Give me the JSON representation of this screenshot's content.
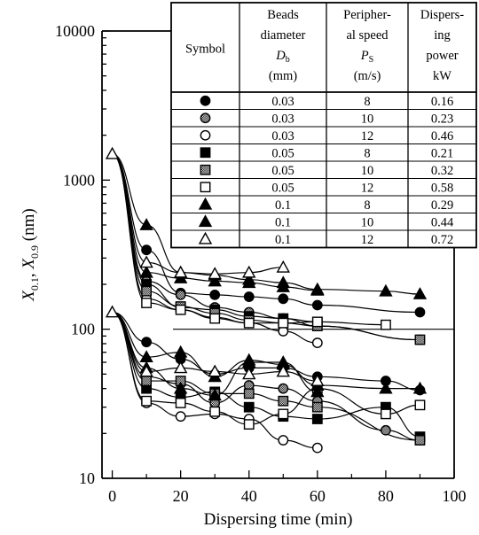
{
  "chart_data": {
    "type": "line",
    "xlabel": "Dispersing time (min)",
    "ylabel_parts": {
      "x": "X",
      "sub1": "0.1",
      "sep": ", ",
      "x2": "X",
      "sub2": "0.9",
      "unit": " (nm)"
    },
    "xlim": [
      -3,
      100
    ],
    "ylim": [
      10,
      10000
    ],
    "y_scale": "log",
    "x_ticks": [
      0,
      20,
      40,
      60,
      80,
      100
    ],
    "y_ticks": [
      10,
      100,
      1000,
      10000
    ],
    "y_tick_labels": [
      "10",
      "100",
      "1000",
      "10000"
    ],
    "grid": "horizontal lines at 100 and 1000 (within table area)",
    "table": {
      "headers": [
        [
          "Symbol"
        ],
        [
          "Beads",
          "diameter",
          "D_b",
          "(mm)"
        ],
        [
          "Peripher-",
          "al speed",
          "P_S",
          "(m/s)"
        ],
        [
          "Dispers-",
          "ing",
          "power",
          "kW"
        ]
      ],
      "rows": [
        {
          "symbol": "filled-circle",
          "diameter": "0.03",
          "speed": "8",
          "power": "0.16"
        },
        {
          "symbol": "shaded-circle",
          "diameter": "0.03",
          "speed": "10",
          "power": "0.23"
        },
        {
          "symbol": "open-circle",
          "diameter": "0.03",
          "speed": "12",
          "power": "0.46"
        },
        {
          "symbol": "filled-square",
          "diameter": "0.05",
          "speed": "8",
          "power": "0.21"
        },
        {
          "symbol": "shaded-square",
          "diameter": "0.05",
          "speed": "10",
          "power": "0.32"
        },
        {
          "symbol": "open-square",
          "diameter": "0.05",
          "speed": "12",
          "power": "0.58"
        },
        {
          "symbol": "filled-triangle",
          "diameter": "0.1",
          "speed": "8",
          "power": "0.29"
        },
        {
          "symbol": "filled-triangle",
          "diameter": "0.1",
          "speed": "10",
          "power": "0.44"
        },
        {
          "symbol": "open-triangle",
          "diameter": "0.1",
          "speed": "12",
          "power": "0.72"
        }
      ]
    },
    "series": [
      {
        "name": "0.03 mm / 8 m/s X0.9",
        "marker": "filled-circle",
        "x": [
          0,
          10,
          20,
          30,
          40,
          50,
          60,
          90
        ],
        "y": [
          1500,
          340,
          175,
          170,
          165,
          160,
          145,
          130
        ]
      },
      {
        "name": "0.03 mm / 8 m/s X0.1",
        "marker": "filled-circle",
        "x": [
          0,
          10,
          20,
          30,
          40,
          50,
          60,
          80,
          90
        ],
        "y": [
          130,
          82,
          63,
          50,
          55,
          55,
          48,
          45,
          39
        ]
      },
      {
        "name": "0.03 mm / 10 m/s X0.9",
        "marker": "shaded-circle",
        "x": [
          0,
          10,
          20,
          30,
          40,
          50,
          60,
          90
        ],
        "y": [
          1500,
          210,
          170,
          140,
          130,
          118,
          105,
          85
        ]
      },
      {
        "name": "0.03 mm / 10 m/s X0.1",
        "marker": "shaded-circle",
        "x": [
          0,
          10,
          20,
          30,
          40,
          50,
          60,
          80,
          90
        ],
        "y": [
          130,
          48,
          43,
          32,
          42,
          40,
          33,
          21,
          18
        ]
      },
      {
        "name": "0.03 mm / 12 m/s X0.9",
        "marker": "open-circle",
        "x": [
          0,
          10,
          20,
          30,
          40,
          50,
          60
        ],
        "y": [
          1500,
          160,
          135,
          120,
          110,
          97,
          81
        ]
      },
      {
        "name": "0.03 mm / 12 m/s X0.1",
        "marker": "open-circle",
        "x": [
          0,
          10,
          20,
          30,
          40,
          50,
          60
        ],
        "y": [
          130,
          32,
          26,
          27,
          25,
          18,
          16
        ]
      },
      {
        "name": "0.05 mm / 8 m/s X0.9",
        "marker": "filled-square",
        "x": [
          0,
          10,
          20,
          30,
          40,
          50,
          60
        ],
        "y": [
          1500,
          200,
          140,
          135,
          122,
          118,
          112
        ]
      },
      {
        "name": "0.05 mm / 8 m/s X0.1",
        "marker": "filled-square",
        "x": [
          0,
          10,
          20,
          30,
          40,
          50,
          60,
          80,
          90
        ],
        "y": [
          130,
          40,
          35,
          38,
          30,
          26,
          25,
          30,
          19
        ]
      },
      {
        "name": "0.05 mm / 10 m/s X0.9",
        "marker": "shaded-square",
        "x": [
          0,
          10,
          20,
          30,
          40,
          50,
          60,
          90
        ],
        "y": [
          1500,
          180,
          142,
          128,
          115,
          110,
          105,
          85
        ]
      },
      {
        "name": "0.05 mm / 10 m/s X0.1",
        "marker": "shaded-square",
        "x": [
          0,
          10,
          20,
          30,
          40,
          50,
          60,
          90
        ],
        "y": [
          130,
          45,
          45,
          37,
          37,
          33,
          30,
          18
        ]
      },
      {
        "name": "0.05 mm / 12 m/s X0.9",
        "marker": "open-square",
        "x": [
          0,
          10,
          20,
          30,
          40,
          50,
          60,
          80
        ],
        "y": [
          1500,
          150,
          135,
          118,
          110,
          110,
          112,
          107
        ]
      },
      {
        "name": "0.05 mm / 12 m/s X0.1",
        "marker": "open-square",
        "x": [
          0,
          10,
          20,
          30,
          40,
          50,
          60,
          80,
          90
        ],
        "y": [
          130,
          33,
          32,
          28,
          23,
          27,
          40,
          27,
          31
        ]
      },
      {
        "name": "0.1 mm / 8 m/s X0.9",
        "marker": "filled-triangle",
        "x": [
          0,
          10,
          20,
          30,
          40,
          50,
          60,
          80,
          90
        ],
        "y": [
          1500,
          500,
          240,
          230,
          215,
          205,
          185,
          180,
          172
        ]
      },
      {
        "name": "0.1 mm / 8 m/s X0.1",
        "marker": "filled-triangle",
        "x": [
          0,
          10,
          20,
          30,
          40,
          50,
          60,
          80,
          90
        ],
        "y": [
          130,
          65,
          70,
          48,
          62,
          58,
          42,
          40,
          40
        ]
      },
      {
        "name": "0.1 mm / 10 m/s X0.9",
        "marker": "filled-triangle",
        "x": [
          0,
          10,
          20,
          30,
          40,
          50,
          60
        ],
        "y": [
          1500,
          240,
          220,
          210,
          205,
          192,
          182
        ]
      },
      {
        "name": "0.1 mm / 10 m/s X0.1",
        "marker": "filled-triangle",
        "x": [
          0,
          10,
          20,
          30,
          40,
          50,
          60
        ],
        "y": [
          130,
          55,
          40,
          36,
          60,
          60,
          38
        ]
      },
      {
        "name": "0.1 mm / 12 m/s X0.9",
        "marker": "open-triangle",
        "x": [
          0,
          10,
          20,
          30,
          40,
          50
        ],
        "y": [
          1500,
          280,
          240,
          235,
          240,
          260
        ]
      },
      {
        "name": "0.1 mm / 12 m/s X0.1",
        "marker": "open-triangle",
        "x": [
          0,
          10,
          20,
          30,
          40,
          50,
          60
        ],
        "y": [
          130,
          52,
          55,
          52,
          50,
          52,
          45
        ]
      }
    ]
  }
}
